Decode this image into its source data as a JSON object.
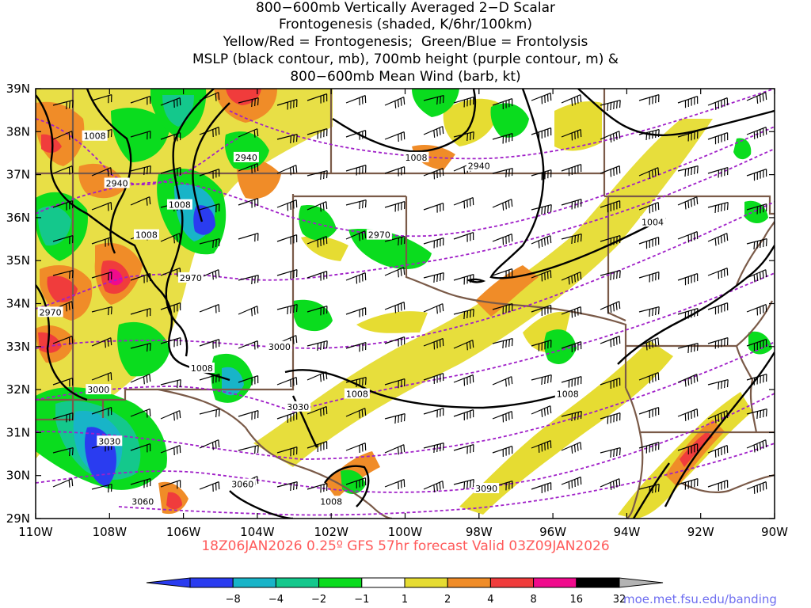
{
  "title_lines": [
    "800−600mb Vertically Averaged 2−D Scalar",
    "Frontogenesis (shaded, K/6hr/100km)",
    "Yellow/Red = Frontogenesis;  Green/Blue = Frontolysis",
    "MSLP (black contour, mb), 700mb height (purple contour, m) &",
    "800−600mb Mean Wind (barb, kt)"
  ],
  "forecast_label": "18Z06JAN2026 0.25º GFS 57hr forecast Valid 03Z09JAN2026",
  "credit": "moe.met.fsu.edu/banding",
  "map": {
    "lon_range": [
      -110,
      -90
    ],
    "lat_range": [
      29,
      39
    ],
    "lon_ticks": [
      "110W",
      "108W",
      "106W",
      "104W",
      "102W",
      "100W",
      "98W",
      "96W",
      "94W",
      "92W",
      "90W"
    ],
    "lat_ticks": [
      "29N",
      "30N",
      "31N",
      "32N",
      "33N",
      "34N",
      "35N",
      "36N",
      "37N",
      "38N",
      "39N"
    ],
    "mslp_color": "#000000",
    "height_color": "#a020c8",
    "border_color": "#7a5a48",
    "mslp_labels": [
      {
        "text": "1008",
        "lon": -108.4,
        "lat": 37.9
      },
      {
        "text": "1008",
        "lon": -106.1,
        "lat": 36.3
      },
      {
        "text": "1008",
        "lon": -107.0,
        "lat": 35.6
      },
      {
        "text": "1008",
        "lon": -105.5,
        "lat": 32.5
      },
      {
        "text": "1008",
        "lon": -99.7,
        "lat": 37.4
      },
      {
        "text": "1008",
        "lon": -101.3,
        "lat": 31.9
      },
      {
        "text": "1008",
        "lon": -95.6,
        "lat": 31.9
      },
      {
        "text": "1008",
        "lon": -102.0,
        "lat": 29.4
      },
      {
        "text": "1004",
        "lon": -93.3,
        "lat": 35.9
      }
    ],
    "height_labels": [
      {
        "text": "2940",
        "lon": -104.3,
        "lat": 37.4
      },
      {
        "text": "2940",
        "lon": -107.8,
        "lat": 36.8
      },
      {
        "text": "2940",
        "lon": -98.0,
        "lat": 37.2
      },
      {
        "text": "2970",
        "lon": -100.7,
        "lat": 35.6
      },
      {
        "text": "2970",
        "lon": -105.8,
        "lat": 34.6
      },
      {
        "text": "2970",
        "lon": -109.6,
        "lat": 33.8
      },
      {
        "text": "3000",
        "lon": -103.4,
        "lat": 33.0
      },
      {
        "text": "3000",
        "lon": -108.3,
        "lat": 32.0
      },
      {
        "text": "3030",
        "lon": -102.9,
        "lat": 31.6
      },
      {
        "text": "3030",
        "lon": -108.0,
        "lat": 30.8
      },
      {
        "text": "3060",
        "lon": -104.4,
        "lat": 29.8
      },
      {
        "text": "3060",
        "lon": -107.1,
        "lat": 29.4
      },
      {
        "text": "3090",
        "lon": -97.8,
        "lat": 29.7
      }
    ]
  },
  "colorbar": {
    "labels": [
      "−8",
      "−4",
      "−2",
      "−1",
      "1",
      "2",
      "4",
      "8",
      "16",
      "32"
    ],
    "colors": [
      "#2a3cf0",
      "#18b4c8",
      "#14c88c",
      "#0adc1e",
      "#ffffff",
      "#e6dc32",
      "#f08c28",
      "#f03c3c",
      "#f00a8c",
      "#000000"
    ],
    "arrow_left_color": "#2a3cf0",
    "arrow_right_color": "#b4b4b4"
  }
}
